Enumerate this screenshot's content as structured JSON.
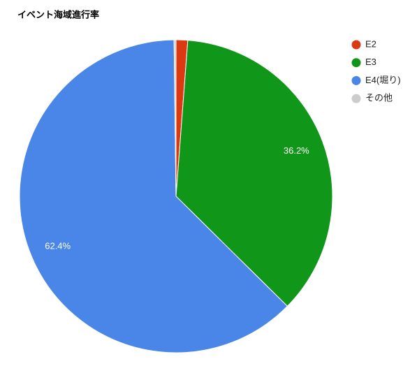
{
  "chart_data": {
    "type": "pie",
    "title": "イベント海域進行率",
    "categories": [
      "E2",
      "E3",
      "E4(堀り)",
      "その他"
    ],
    "values": [
      1.2,
      36.2,
      62.4,
      0.2
    ],
    "value_labels": [
      null,
      "36.2%",
      "62.4%",
      null
    ],
    "colors": [
      "#dc3912",
      "#109618",
      "#4a86e8",
      "#cccccc"
    ],
    "legend": "right"
  }
}
